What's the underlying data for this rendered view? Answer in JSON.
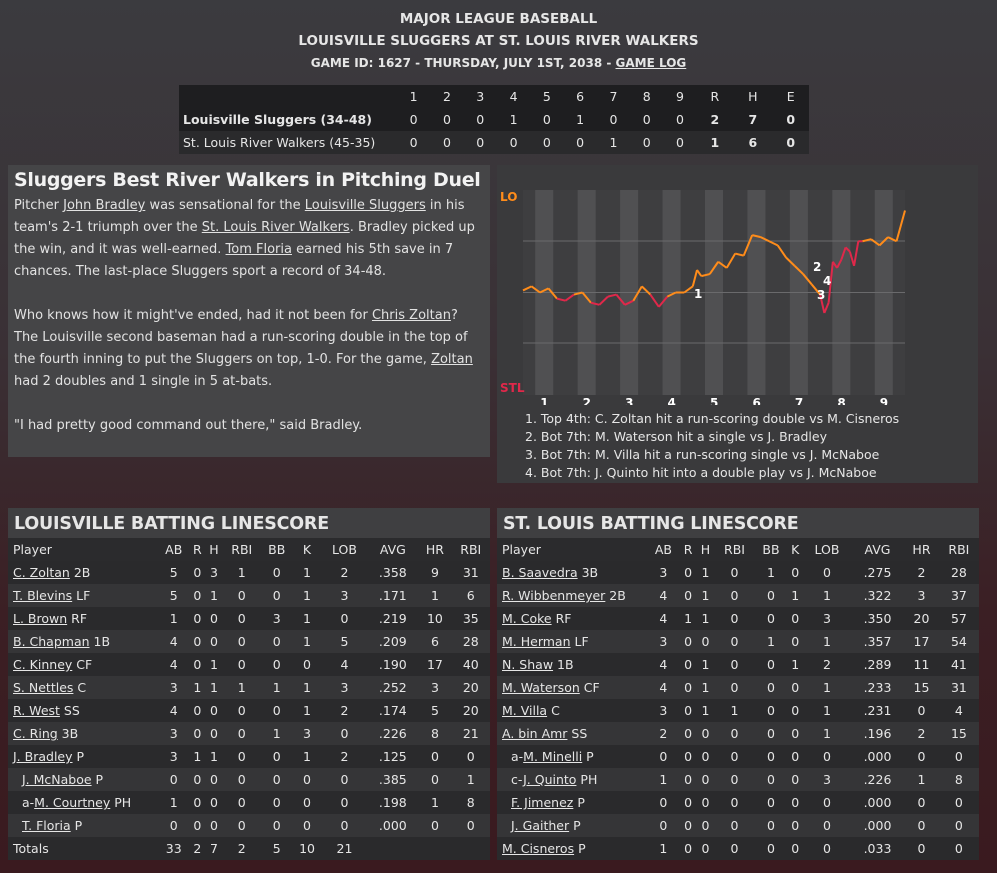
{
  "header": {
    "league": "MAJOR LEAGUE BASEBALL",
    "matchup": "LOUISVILLE SLUGGERS AT ST. LOUIS RIVER WALKERS",
    "game_info": "GAME ID: 1627 - THURSDAY, JULY 1ST, 2038 - ",
    "game_log_link": "GAME LOG"
  },
  "boxscore": {
    "columns": [
      "1",
      "2",
      "3",
      "4",
      "5",
      "6",
      "7",
      "8",
      "9",
      "R",
      "H",
      "E"
    ],
    "teams": [
      {
        "name": "Louisville Sluggers (34-48)",
        "cells": [
          "0",
          "0",
          "0",
          "1",
          "0",
          "1",
          "0",
          "0",
          "0",
          "2",
          "7",
          "0"
        ]
      },
      {
        "name": "St. Louis River Walkers (45-35)",
        "cells": [
          "0",
          "0",
          "0",
          "0",
          "0",
          "0",
          "1",
          "0",
          "0",
          "1",
          "6",
          "0"
        ]
      }
    ]
  },
  "story": {
    "headline": "Sluggers Best River Walkers in Pitching Duel",
    "p1": [
      {
        "t": "Pitcher "
      },
      {
        "t": "John Bradley",
        "link": true
      },
      {
        "t": " was sensational for the "
      },
      {
        "t": "Louisville Sluggers",
        "link": true
      },
      {
        "t": " in his team's 2-1 triumph over the "
      },
      {
        "t": "St. Louis River Walkers",
        "link": true
      },
      {
        "t": ". Bradley picked up the win, and it was well-earned. "
      },
      {
        "t": "Tom Floria",
        "link": true
      },
      {
        "t": " earned his 5th save in 7 chances. The last-place Sluggers sport a record of 34-48."
      }
    ],
    "p2": [
      {
        "t": "Who knows how it might've ended, had it not been for "
      },
      {
        "t": "Chris Zoltan",
        "link": true
      },
      {
        "t": "? The Louisville second baseman had a run-scoring double in the top of the fourth inning to put the Sluggers on top, 1-0. For the game, "
      },
      {
        "t": "Zoltan",
        "link": true
      },
      {
        "t": " had 2 doubles and 1 single in 5 at-bats."
      }
    ],
    "p3": "\"I had pretty good command out there,\" said Bradley."
  },
  "chart_data": {
    "type": "line",
    "title": "",
    "ylabel_top": "LO",
    "ylabel_bottom": "STL",
    "colors": {
      "lo": "#ff8c1a",
      "stl": "#e0284a"
    },
    "innings": [
      "1",
      "2",
      "3",
      "4",
      "5",
      "6",
      "7",
      "8",
      "9"
    ],
    "ylim": [
      -50,
      50
    ],
    "x": [
      0,
      0.2,
      0.4,
      0.6,
      0.8,
      1.0,
      1.2,
      1.4,
      1.6,
      1.8,
      2.0,
      2.2,
      2.4,
      2.6,
      2.8,
      3.0,
      3.2,
      3.4,
      3.6,
      3.8,
      4.0,
      4.1,
      4.2,
      4.4,
      4.6,
      4.8,
      5.0,
      5.2,
      5.4,
      5.6,
      5.8,
      6.0,
      6.2,
      6.4,
      6.6,
      6.8,
      7.0,
      7.1,
      7.2,
      7.3,
      7.4,
      7.5,
      7.6,
      7.7,
      7.8,
      7.9,
      8.0,
      8.2,
      8.4,
      8.6,
      8.8,
      9.0
    ],
    "values": [
      1,
      3,
      0,
      2,
      -3,
      -4,
      -1,
      0,
      -5,
      -6,
      -2,
      -1,
      -6,
      -4,
      3,
      -1,
      -7,
      -2,
      0,
      0,
      3,
      11,
      8,
      9,
      15,
      12,
      19,
      18,
      28,
      27,
      25,
      23,
      17,
      13,
      9,
      4,
      -1,
      -10,
      -5,
      15,
      12,
      16,
      22,
      20,
      13,
      25,
      25,
      26,
      23,
      27,
      25,
      40
    ],
    "events": [
      {
        "id": "1",
        "text": "1. Top 4th: C. Zoltan hit a run-scoring double vs M. Cisneros"
      },
      {
        "id": "2",
        "text": "2. Bot 7th: M. Waterson hit a single vs J. Bradley"
      },
      {
        "id": "3",
        "text": "3. Bot 7th: M. Villa hit a run-scoring single vs J. McNaboe"
      },
      {
        "id": "4",
        "text": "4. Bot 7th: J. Quinto hit into a double play vs J. McNaboe"
      }
    ]
  },
  "louisville": {
    "title": "LOUISVILLE BATTING LINESCORE",
    "headers": [
      "Player",
      "AB",
      "R",
      "H",
      "RBI",
      "BB",
      "K",
      "LOB",
      "AVG",
      "HR",
      "RBI"
    ],
    "rows": [
      {
        "prefix": "",
        "name": "C. Zoltan",
        "pos": "2B",
        "sub": false,
        "stats": [
          "5",
          "0",
          "3",
          "1",
          "0",
          "1",
          "2",
          ".358",
          "9",
          "31"
        ]
      },
      {
        "prefix": "",
        "name": "T. Blevins",
        "pos": "LF",
        "sub": false,
        "stats": [
          "5",
          "0",
          "1",
          "0",
          "0",
          "1",
          "3",
          ".171",
          "1",
          "6"
        ]
      },
      {
        "prefix": "",
        "name": "L. Brown",
        "pos": "RF",
        "sub": false,
        "stats": [
          "1",
          "0",
          "0",
          "0",
          "3",
          "1",
          "0",
          ".219",
          "10",
          "35"
        ]
      },
      {
        "prefix": "",
        "name": "B. Chapman",
        "pos": "1B",
        "sub": false,
        "stats": [
          "4",
          "0",
          "0",
          "0",
          "0",
          "1",
          "5",
          ".209",
          "6",
          "28"
        ]
      },
      {
        "prefix": "",
        "name": "C. Kinney",
        "pos": "CF",
        "sub": false,
        "stats": [
          "4",
          "0",
          "1",
          "0",
          "0",
          "0",
          "4",
          ".190",
          "17",
          "40"
        ]
      },
      {
        "prefix": "",
        "name": "S. Nettles",
        "pos": "C",
        "sub": false,
        "stats": [
          "3",
          "1",
          "1",
          "1",
          "1",
          "1",
          "3",
          ".252",
          "3",
          "20"
        ]
      },
      {
        "prefix": "",
        "name": "R. West",
        "pos": "SS",
        "sub": false,
        "stats": [
          "4",
          "0",
          "0",
          "0",
          "0",
          "1",
          "2",
          ".174",
          "5",
          "20"
        ]
      },
      {
        "prefix": "",
        "name": "C. Ring",
        "pos": "3B",
        "sub": false,
        "stats": [
          "3",
          "0",
          "0",
          "0",
          "1",
          "3",
          "0",
          ".226",
          "8",
          "21"
        ]
      },
      {
        "prefix": "",
        "name": "J. Bradley",
        "pos": "P",
        "sub": false,
        "stats": [
          "3",
          "1",
          "1",
          "0",
          "0",
          "1",
          "2",
          ".125",
          "0",
          "0"
        ]
      },
      {
        "prefix": "",
        "name": "J. McNaboe",
        "pos": "P",
        "sub": true,
        "stats": [
          "0",
          "0",
          "0",
          "0",
          "0",
          "0",
          "0",
          ".385",
          "0",
          "1"
        ]
      },
      {
        "prefix": "a-",
        "name": "M. Courtney",
        "pos": "PH",
        "sub": true,
        "stats": [
          "1",
          "0",
          "0",
          "0",
          "0",
          "0",
          "0",
          ".198",
          "1",
          "8"
        ]
      },
      {
        "prefix": "",
        "name": "T. Floria",
        "pos": "P",
        "sub": true,
        "stats": [
          "0",
          "0",
          "0",
          "0",
          "0",
          "0",
          "0",
          ".000",
          "0",
          "0"
        ]
      }
    ],
    "totals": {
      "label": "Totals",
      "stats": [
        "33",
        "2",
        "7",
        "2",
        "5",
        "10",
        "21",
        "",
        "",
        ""
      ]
    }
  },
  "stlouis": {
    "title": "ST. LOUIS BATTING LINESCORE",
    "headers": [
      "Player",
      "AB",
      "R",
      "H",
      "RBI",
      "BB",
      "K",
      "LOB",
      "AVG",
      "HR",
      "RBI"
    ],
    "rows": [
      {
        "prefix": "",
        "name": "B. Saavedra",
        "pos": "3B",
        "sub": false,
        "stats": [
          "3",
          "0",
          "1",
          "0",
          "1",
          "0",
          "0",
          ".275",
          "2",
          "28"
        ]
      },
      {
        "prefix": "",
        "name": "R. Wibbenmeyer",
        "pos": "2B",
        "sub": false,
        "stats": [
          "4",
          "0",
          "1",
          "0",
          "0",
          "1",
          "1",
          ".322",
          "3",
          "37"
        ]
      },
      {
        "prefix": "",
        "name": "M. Coke",
        "pos": "RF",
        "sub": false,
        "stats": [
          "4",
          "1",
          "1",
          "0",
          "0",
          "0",
          "3",
          ".350",
          "20",
          "57"
        ]
      },
      {
        "prefix": "",
        "name": "M. Herman",
        "pos": "LF",
        "sub": false,
        "stats": [
          "3",
          "0",
          "0",
          "0",
          "1",
          "0",
          "1",
          ".357",
          "17",
          "54"
        ]
      },
      {
        "prefix": "",
        "name": "N. Shaw",
        "pos": "1B",
        "sub": false,
        "stats": [
          "4",
          "0",
          "1",
          "0",
          "0",
          "1",
          "2",
          ".289",
          "11",
          "41"
        ]
      },
      {
        "prefix": "",
        "name": "M. Waterson",
        "pos": "CF",
        "sub": false,
        "stats": [
          "4",
          "0",
          "1",
          "0",
          "0",
          "0",
          "1",
          ".233",
          "15",
          "31"
        ]
      },
      {
        "prefix": "",
        "name": "M. Villa",
        "pos": "C",
        "sub": false,
        "stats": [
          "3",
          "0",
          "1",
          "1",
          "0",
          "0",
          "1",
          ".231",
          "0",
          "4"
        ]
      },
      {
        "prefix": "",
        "name": "A. bin Amr",
        "pos": "SS",
        "sub": false,
        "stats": [
          "2",
          "0",
          "0",
          "0",
          "0",
          "0",
          "1",
          ".196",
          "2",
          "15"
        ]
      },
      {
        "prefix": "a-",
        "name": "M. Minelli",
        "pos": "P",
        "sub": true,
        "stats": [
          "0",
          "0",
          "0",
          "0",
          "0",
          "0",
          "0",
          ".000",
          "0",
          "0"
        ]
      },
      {
        "prefix": "c-",
        "name": "J. Quinto",
        "pos": "PH",
        "sub": true,
        "stats": [
          "1",
          "0",
          "0",
          "0",
          "0",
          "0",
          "3",
          ".226",
          "1",
          "8"
        ]
      },
      {
        "prefix": "",
        "name": "F. Jimenez",
        "pos": "P",
        "sub": true,
        "stats": [
          "0",
          "0",
          "0",
          "0",
          "0",
          "0",
          "0",
          ".000",
          "0",
          "0"
        ]
      },
      {
        "prefix": "",
        "name": "J. Gaither",
        "pos": "P",
        "sub": true,
        "stats": [
          "0",
          "0",
          "0",
          "0",
          "0",
          "0",
          "0",
          ".000",
          "0",
          "0"
        ]
      },
      {
        "prefix": "",
        "name": "M. Cisneros",
        "pos": "P",
        "sub": false,
        "stats": [
          "1",
          "0",
          "0",
          "0",
          "0",
          "0",
          "0",
          ".033",
          "0",
          "0"
        ]
      }
    ]
  }
}
